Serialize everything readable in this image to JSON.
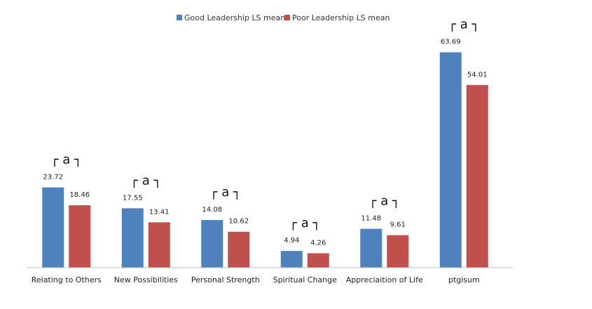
{
  "chart_data": {
    "type": "bar",
    "title": "",
    "xlabel": "",
    "ylabel": "",
    "ylim": [
      0,
      75
    ],
    "grid": false,
    "legend_position": "top-center",
    "categories": [
      "Relating to Others",
      "New Possibilities",
      "Personal Strength",
      "Spiritual Change",
      "Appreciaition of Life",
      "ptgisum"
    ],
    "series": [
      {
        "name": "Good Leadership LS mean",
        "color": "#4f81bd",
        "values": [
          23.72,
          17.55,
          14.08,
          4.94,
          11.48,
          63.69
        ]
      },
      {
        "name": "Poor Leadership LS mean",
        "color": "#c0504d",
        "values": [
          18.46,
          13.41,
          10.62,
          4.26,
          9.61,
          54.01
        ]
      }
    ],
    "value_labels": [
      [
        "23.72",
        "17.55",
        "14.08",
        "4.94",
        "11.48",
        "63.69"
      ],
      [
        "18.46",
        "13.41",
        "10.62",
        "4.26",
        "9.61",
        "54.01"
      ]
    ],
    "annotations": [
      "┌ a ┐",
      "┌ a ┐",
      "┌ a ┐",
      "┌ a ┐",
      "┌ a ┐",
      "┌ a ┐"
    ]
  }
}
